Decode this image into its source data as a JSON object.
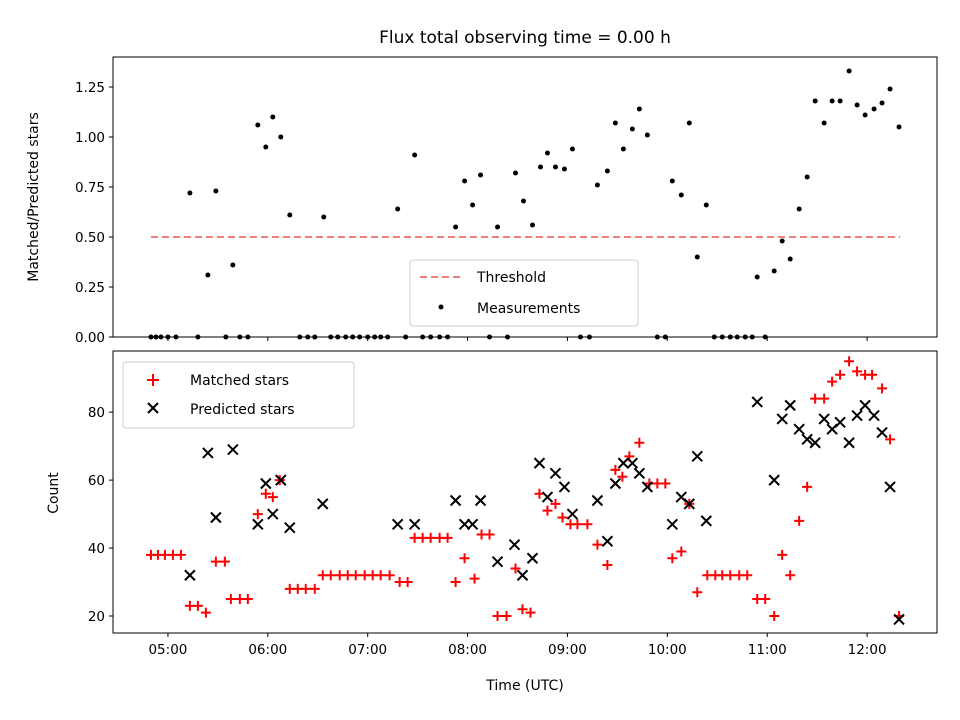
{
  "chart_data": [
    {
      "type": "scatter",
      "title": "Flux total observing time = 0.00 h",
      "xlabel": "",
      "ylabel": "Matched/Predicted stars",
      "xlim": [
        4.45,
        12.7
      ],
      "ylim": [
        0,
        1.4
      ],
      "y_ticks": [
        "0.00",
        "0.25",
        "0.50",
        "0.75",
        "1.00",
        "1.25"
      ],
      "y_tick_values": [
        0,
        0.25,
        0.5,
        0.75,
        1.0,
        1.25
      ],
      "x_tick_values": [
        5,
        6,
        7,
        8,
        9,
        10,
        11,
        12
      ],
      "legend_position": "lower-center",
      "threshold": {
        "name": "Threshold",
        "value": 0.5,
        "x": [
          4.83,
          12.33
        ],
        "color": "#f08080"
      },
      "series": [
        {
          "name": "Measurements",
          "color": "#000000",
          "marker": "dot",
          "points": [
            [
              4.83,
              0
            ],
            [
              4.88,
              0
            ],
            [
              4.93,
              0
            ],
            [
              5.0,
              0
            ],
            [
              5.08,
              0
            ],
            [
              5.22,
              0.72
            ],
            [
              5.3,
              0
            ],
            [
              5.4,
              0.31
            ],
            [
              5.48,
              0.73
            ],
            [
              5.58,
              0
            ],
            [
              5.65,
              0.36
            ],
            [
              5.72,
              0
            ],
            [
              5.8,
              0
            ],
            [
              5.9,
              1.06
            ],
            [
              5.98,
              0.95
            ],
            [
              6.05,
              1.1
            ],
            [
              6.13,
              1.0
            ],
            [
              6.22,
              0.61
            ],
            [
              6.32,
              0
            ],
            [
              6.4,
              0
            ],
            [
              6.47,
              0
            ],
            [
              6.56,
              0.6
            ],
            [
              6.63,
              0
            ],
            [
              6.7,
              0
            ],
            [
              6.78,
              0
            ],
            [
              6.85,
              0
            ],
            [
              6.92,
              0
            ],
            [
              7.0,
              0
            ],
            [
              7.07,
              0
            ],
            [
              7.13,
              0
            ],
            [
              7.2,
              0
            ],
            [
              7.3,
              0.64
            ],
            [
              7.38,
              0
            ],
            [
              7.47,
              0.91
            ],
            [
              7.55,
              0
            ],
            [
              7.63,
              0
            ],
            [
              7.72,
              0
            ],
            [
              7.8,
              0
            ],
            [
              7.88,
              0.55
            ],
            [
              7.97,
              0.78
            ],
            [
              8.05,
              0.66
            ],
            [
              8.13,
              0.81
            ],
            [
              8.22,
              0
            ],
            [
              8.3,
              0.55
            ],
            [
              8.4,
              0
            ],
            [
              8.48,
              0.82
            ],
            [
              8.56,
              0.68
            ],
            [
              8.65,
              0.56
            ],
            [
              8.73,
              0.85
            ],
            [
              8.8,
              0.92
            ],
            [
              8.88,
              0.85
            ],
            [
              8.97,
              0.84
            ],
            [
              9.05,
              0.94
            ],
            [
              9.13,
              0
            ],
            [
              9.22,
              0
            ],
            [
              9.3,
              0.76
            ],
            [
              9.4,
              0.83
            ],
            [
              9.48,
              1.07
            ],
            [
              9.56,
              0.94
            ],
            [
              9.65,
              1.04
            ],
            [
              9.72,
              1.14
            ],
            [
              9.8,
              1.01
            ],
            [
              9.9,
              0
            ],
            [
              9.98,
              0
            ],
            [
              10.05,
              0.78
            ],
            [
              10.14,
              0.71
            ],
            [
              10.22,
              1.07
            ],
            [
              10.3,
              0.4
            ],
            [
              10.39,
              0.66
            ],
            [
              10.47,
              0
            ],
            [
              10.55,
              0
            ],
            [
              10.63,
              0
            ],
            [
              10.7,
              0
            ],
            [
              10.78,
              0
            ],
            [
              10.85,
              0
            ],
            [
              10.9,
              0.3
            ],
            [
              10.98,
              0
            ],
            [
              11.07,
              0.33
            ],
            [
              11.15,
              0.48
            ],
            [
              11.23,
              0.39
            ],
            [
              11.32,
              0.64
            ],
            [
              11.4,
              0.8
            ],
            [
              11.48,
              1.18
            ],
            [
              11.57,
              1.07
            ],
            [
              11.65,
              1.18
            ],
            [
              11.73,
              1.18
            ],
            [
              11.82,
              1.33
            ],
            [
              11.9,
              1.16
            ],
            [
              11.98,
              1.11
            ],
            [
              12.07,
              1.14
            ],
            [
              12.15,
              1.17
            ],
            [
              12.23,
              1.24
            ],
            [
              12.32,
              1.05
            ]
          ]
        }
      ]
    },
    {
      "type": "scatter",
      "title": "",
      "xlabel": "Time (UTC)",
      "ylabel": "Count",
      "xlim": [
        4.45,
        12.7
      ],
      "ylim": [
        15,
        98
      ],
      "y_ticks": [
        "20",
        "40",
        "60",
        "80"
      ],
      "y_tick_values": [
        20,
        40,
        60,
        80
      ],
      "x_ticks": [
        "05:00",
        "06:00",
        "07:00",
        "08:00",
        "09:00",
        "10:00",
        "11:00",
        "12:00"
      ],
      "x_tick_values": [
        5,
        6,
        7,
        8,
        9,
        10,
        11,
        12
      ],
      "legend_position": "top-left",
      "series": [
        {
          "name": "Matched stars",
          "color": "#ff0000",
          "marker": "plus",
          "points": [
            [
              4.83,
              38
            ],
            [
              4.9,
              38
            ],
            [
              4.97,
              38
            ],
            [
              5.05,
              38
            ],
            [
              5.13,
              38
            ],
            [
              5.22,
              23
            ],
            [
              5.3,
              23
            ],
            [
              5.38,
              21
            ],
            [
              5.48,
              36
            ],
            [
              5.57,
              36
            ],
            [
              5.63,
              25
            ],
            [
              5.72,
              25
            ],
            [
              5.8,
              25
            ],
            [
              5.9,
              50
            ],
            [
              5.98,
              56
            ],
            [
              6.05,
              55
            ],
            [
              6.12,
              60
            ],
            [
              6.22,
              28
            ],
            [
              6.3,
              28
            ],
            [
              6.38,
              28
            ],
            [
              6.47,
              28
            ],
            [
              6.55,
              32
            ],
            [
              6.63,
              32
            ],
            [
              6.72,
              32
            ],
            [
              6.8,
              32
            ],
            [
              6.88,
              32
            ],
            [
              6.97,
              32
            ],
            [
              7.05,
              32
            ],
            [
              7.13,
              32
            ],
            [
              7.22,
              32
            ],
            [
              7.32,
              30
            ],
            [
              7.4,
              30
            ],
            [
              7.47,
              43
            ],
            [
              7.55,
              43
            ],
            [
              7.63,
              43
            ],
            [
              7.72,
              43
            ],
            [
              7.8,
              43
            ],
            [
              7.88,
              30
            ],
            [
              7.97,
              37
            ],
            [
              8.07,
              31
            ],
            [
              8.14,
              44
            ],
            [
              8.22,
              44
            ],
            [
              8.3,
              20
            ],
            [
              8.39,
              20
            ],
            [
              8.48,
              34
            ],
            [
              8.55,
              22
            ],
            [
              8.63,
              21
            ],
            [
              8.72,
              56
            ],
            [
              8.8,
              51
            ],
            [
              8.88,
              53
            ],
            [
              8.95,
              49
            ],
            [
              9.03,
              47
            ],
            [
              9.1,
              47
            ],
            [
              9.2,
              47
            ],
            [
              9.3,
              41
            ],
            [
              9.4,
              35
            ],
            [
              9.48,
              63
            ],
            [
              9.55,
              61
            ],
            [
              9.62,
              67
            ],
            [
              9.72,
              71
            ],
            [
              9.82,
              59
            ],
            [
              9.9,
              59
            ],
            [
              9.98,
              59
            ],
            [
              10.05,
              37
            ],
            [
              10.14,
              39
            ],
            [
              10.22,
              53
            ],
            [
              10.3,
              27
            ],
            [
              10.4,
              32
            ],
            [
              10.48,
              32
            ],
            [
              10.55,
              32
            ],
            [
              10.63,
              32
            ],
            [
              10.72,
              32
            ],
            [
              10.8,
              32
            ],
            [
              10.9,
              25
            ],
            [
              10.98,
              25
            ],
            [
              11.07,
              20
            ],
            [
              11.15,
              38
            ],
            [
              11.23,
              32
            ],
            [
              11.32,
              48
            ],
            [
              11.4,
              58
            ],
            [
              11.48,
              84
            ],
            [
              11.57,
              84
            ],
            [
              11.65,
              89
            ],
            [
              11.73,
              91
            ],
            [
              11.82,
              95
            ],
            [
              11.9,
              92
            ],
            [
              11.98,
              91
            ],
            [
              12.05,
              91
            ],
            [
              12.15,
              87
            ],
            [
              12.23,
              72
            ],
            [
              12.32,
              20
            ]
          ]
        },
        {
          "name": "Predicted stars",
          "color": "#000000",
          "marker": "x",
          "points": [
            [
              5.22,
              32
            ],
            [
              5.4,
              68
            ],
            [
              5.48,
              49
            ],
            [
              5.65,
              69
            ],
            [
              5.9,
              47
            ],
            [
              5.98,
              59
            ],
            [
              6.05,
              50
            ],
            [
              6.13,
              60
            ],
            [
              6.22,
              46
            ],
            [
              6.55,
              53
            ],
            [
              7.3,
              47
            ],
            [
              7.47,
              47
            ],
            [
              7.88,
              54
            ],
            [
              7.97,
              47
            ],
            [
              8.05,
              47
            ],
            [
              8.13,
              54
            ],
            [
              8.3,
              36
            ],
            [
              8.47,
              41
            ],
            [
              8.55,
              32
            ],
            [
              8.65,
              37
            ],
            [
              8.72,
              65
            ],
            [
              8.8,
              55
            ],
            [
              8.88,
              62
            ],
            [
              8.97,
              58
            ],
            [
              9.05,
              50
            ],
            [
              9.3,
              54
            ],
            [
              9.4,
              42
            ],
            [
              9.48,
              59
            ],
            [
              9.56,
              65
            ],
            [
              9.65,
              65
            ],
            [
              9.72,
              62
            ],
            [
              9.8,
              58
            ],
            [
              10.05,
              47
            ],
            [
              10.14,
              55
            ],
            [
              10.22,
              53
            ],
            [
              10.3,
              67
            ],
            [
              10.39,
              48
            ],
            [
              10.9,
              83
            ],
            [
              11.07,
              60
            ],
            [
              11.15,
              78
            ],
            [
              11.23,
              82
            ],
            [
              11.32,
              75
            ],
            [
              11.4,
              72
            ],
            [
              11.48,
              71
            ],
            [
              11.57,
              78
            ],
            [
              11.65,
              75
            ],
            [
              11.73,
              77
            ],
            [
              11.82,
              71
            ],
            [
              11.9,
              79
            ],
            [
              11.98,
              82
            ],
            [
              12.07,
              79
            ],
            [
              12.15,
              74
            ],
            [
              12.23,
              58
            ],
            [
              12.32,
              19
            ]
          ]
        }
      ]
    }
  ]
}
